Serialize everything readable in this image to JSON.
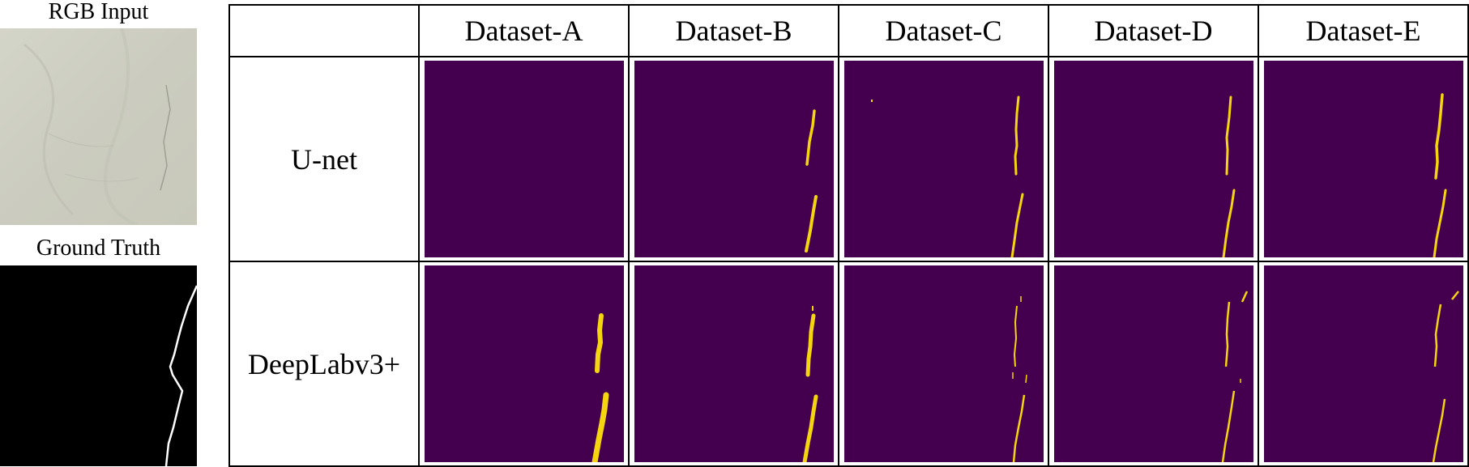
{
  "left_panel": {
    "rgb_label": "RGB Input",
    "gt_label": "Ground Truth"
  },
  "table": {
    "columns": [
      "Dataset-A",
      "Dataset-B",
      "Dataset-C",
      "Dataset-D",
      "Dataset-E"
    ],
    "rows": [
      "U-net",
      "DeepLabv3+"
    ]
  },
  "colors": {
    "background_purple": "#44004f",
    "crack_yellow": "#f5d410",
    "mask_black": "#000000",
    "mask_white": "#ffffff",
    "marble_gray": "#cfd0c4"
  }
}
